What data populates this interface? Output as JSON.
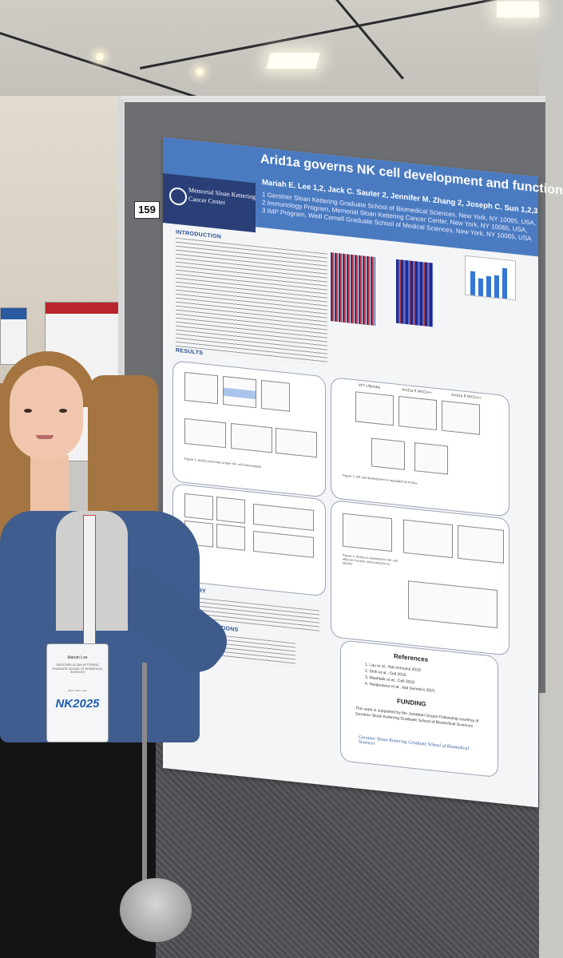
{
  "scene": {
    "board_number": "159"
  },
  "poster": {
    "title": "Arid1a governs NK cell development and function",
    "authors": "Mariah E. Lee 1,2, Jack C. Sauter 2, Jennifer M. Zhang 2, Joseph C. Sun 1,2,3",
    "affiliations": [
      "1 Gerstner Sloan Kettering Graduate School of Biomedical Sciences, New York, NY 10065, USA,",
      "2 Immunology Program, Memorial Sloan Kettering Cancer Center, New York, NY 10065, USA,",
      "3 IMP Program, Weill Cornell Graduate School of Medical Sciences, New York, NY 10065, USA"
    ],
    "logo_line1": "Memorial Sloan Kettering",
    "logo_line2": "Cancer Center",
    "sections": {
      "introduction": "INTRODUCTION",
      "results": "RESULTS",
      "summary": "SUMMARY",
      "future": "FUTURE DIRECTIONS",
      "references": "References",
      "funding": "FUNDING"
    },
    "panel_labels": {
      "wt_ultimate": "WT Ultimate",
      "arid1a_fl": "Arid1a fl NKCre+",
      "arid1a_fl2": "Arid1a fl NKCre+"
    },
    "figure_captions": {
      "fig1": "Figure 1. Arid1a promotes proper NK cell homeostasis.",
      "fig3": "Figure 3. NK cell development is regulated by Arid1a.",
      "fig4": "Figure 4. Arid1a is essential for NK cell effector function and protection to MCMV."
    },
    "references": [
      "1. Lau et al., Nat Immunol 2018",
      "2. Shih et al., Cell 2016",
      "3. Mashtalir et al., Cell 2018",
      "4. Hargreaves et al., Nat Genetics 2021"
    ],
    "funding_text": "This work is supported by the Jonathan Grayer Fellowship courtesy of Gerstner Sloan Kettering Graduate School of Biomedical Sciences",
    "footer_logo": "Gerstner Sloan Kettering Graduate School of Biomedical Sciences"
  },
  "badge": {
    "name": "Mariah Lee",
    "org": "GERSTNER SLOAN KETTERING GRADUATE SCHOOL OF BIOMEDICAL SCIENCES",
    "location": "NEW YORK, USA",
    "logo": "NK2025"
  },
  "colors": {
    "poster_header": "#4a7bc1",
    "msk_logo": "#2a3f77",
    "cardigan": "#3f5d8f"
  }
}
